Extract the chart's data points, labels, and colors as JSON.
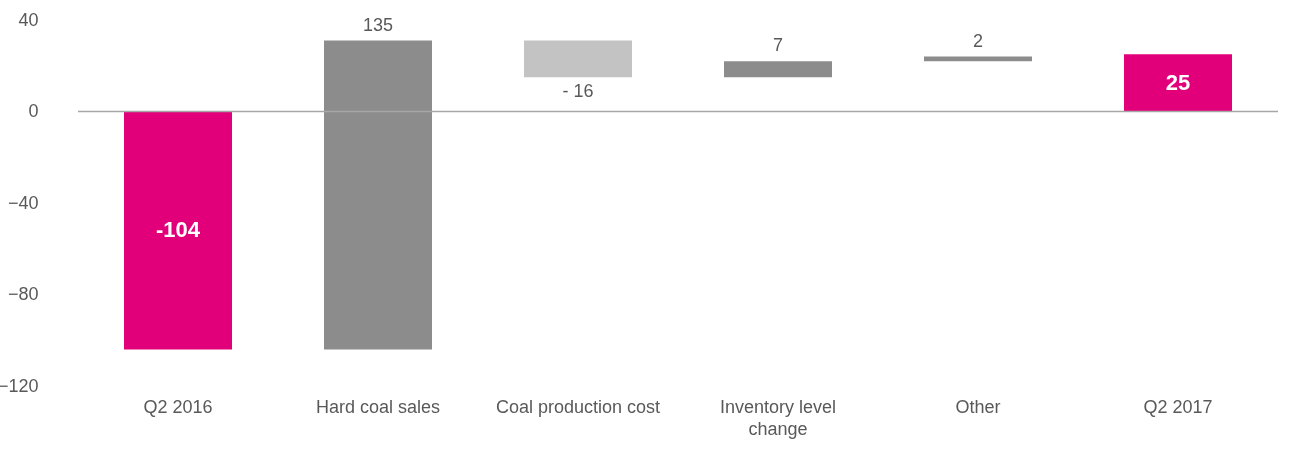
{
  "chart_data": {
    "type": "bar",
    "categories": [
      "Q2 2016",
      "Hard coal sales",
      "Coal production cost",
      "Inventory level change",
      "Other",
      "Q2 2017"
    ],
    "values": [
      -104,
      135,
      -16,
      7,
      2,
      25
    ],
    "base": [
      0,
      -104,
      31,
      15,
      22,
      0
    ],
    "colors": [
      "#e2007a",
      "#8c8c8c",
      "#c3c3c3",
      "#8c8c8c",
      "#8c8c8c",
      "#e2007a"
    ],
    "value_labels": [
      "-104",
      "135",
      "- 16",
      "7",
      "2",
      "25"
    ],
    "ylim": [
      -120,
      40
    ],
    "yticks": [
      -120,
      -80,
      -40,
      0,
      40
    ],
    "grid": false,
    "ref_lines": [
      {
        "axis": "y",
        "value": 0,
        "color": "#a6a6a6"
      }
    ]
  }
}
